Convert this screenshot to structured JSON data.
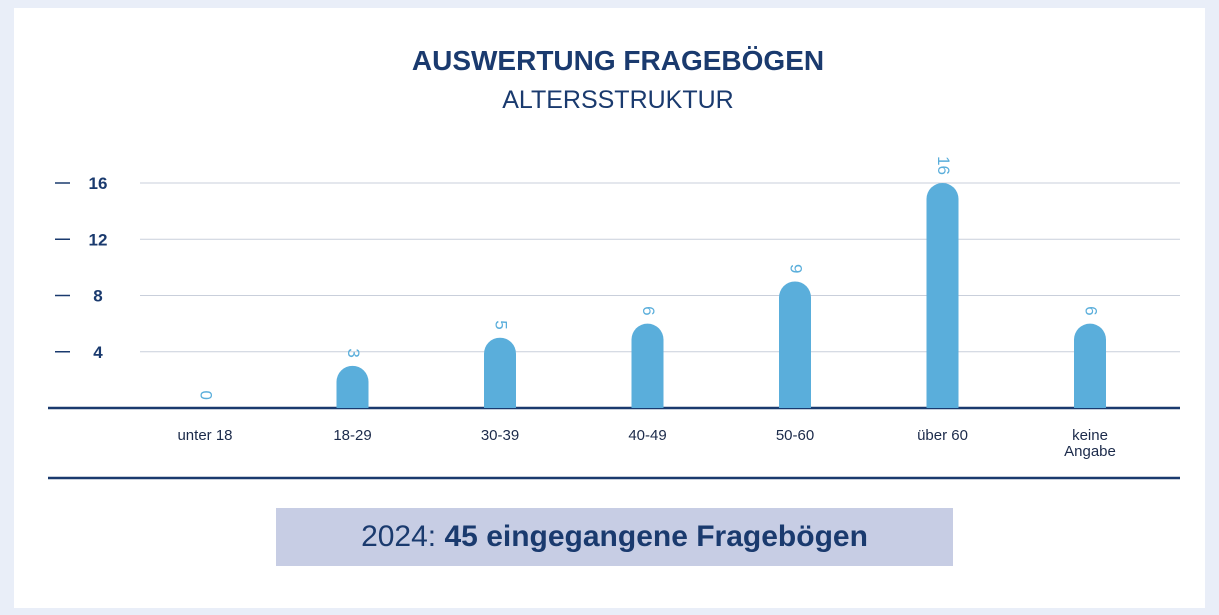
{
  "chart_data": {
    "type": "bar",
    "title": "AUSWERTUNG FRAGEBÖGEN",
    "subtitle": "ALTERSSTRUKTUR",
    "categories": [
      "unter 18",
      "18-29",
      "30-39",
      "40-49",
      "50-60",
      "über 60",
      "keine Angabe"
    ],
    "values": [
      0,
      3,
      5,
      6,
      9,
      16,
      6
    ],
    "color": "#5aaedb",
    "ylim": [
      0,
      16
    ],
    "yticks": [
      4,
      8,
      12,
      16
    ],
    "grid": true
  },
  "footer": {
    "year": "2024:",
    "text": "45 eingegangene Fragebögen"
  }
}
